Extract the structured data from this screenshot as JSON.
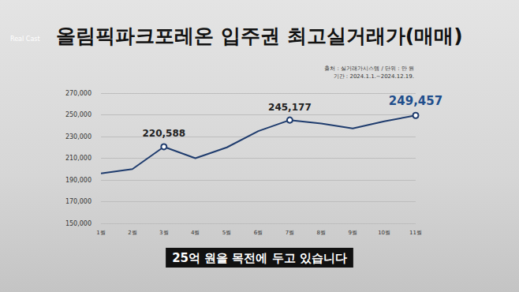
{
  "chart_data": {
    "type": "line",
    "title": "올림픽파크포레온 입주권 최고실거래가(매매)",
    "subtitle": "25억 원을 목전에 두고 있습니다",
    "source": "출처 : 실거래가시스템 / 단위 : 만 원",
    "period": "기간 : 2024.1.1.~2024.12.19.",
    "logo": "Real Cast",
    "categories": [
      "1월",
      "2월",
      "3월",
      "4월",
      "5월",
      "6월",
      "7월",
      "8월",
      "9월",
      "10월",
      "11월"
    ],
    "values": [
      196000,
      200000,
      220588,
      210000,
      220000,
      235000,
      245177,
      242000,
      237500,
      244000,
      249457
    ],
    "value_labels": [
      null,
      null,
      "220,588",
      null,
      null,
      null,
      "245,177",
      null,
      null,
      null,
      "249,457"
    ],
    "data_labels": true,
    "color": "#1f3c6e",
    "ylim": [
      150000,
      270000
    ],
    "yticks": [
      {
        "value": 150000,
        "label": "150,000"
      },
      {
        "value": 170000,
        "label": "170,000"
      },
      {
        "value": 190000,
        "label": "190,000"
      },
      {
        "value": 210000,
        "label": "210,000"
      },
      {
        "value": 230000,
        "label": "230,000"
      },
      {
        "value": 250000,
        "label": "250,000"
      },
      {
        "value": 270000,
        "label": "270,000"
      }
    ],
    "grid": true
  }
}
